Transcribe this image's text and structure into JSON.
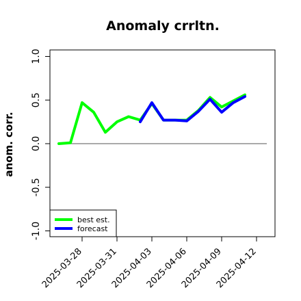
{
  "chart_data": {
    "type": "line",
    "title": "Anomaly crrltn.",
    "xlabel": "",
    "ylabel": "anom. corr.",
    "ylim": [
      -1.0,
      1.0
    ],
    "yticks": [
      "-1.0",
      "-0.5",
      "0.0",
      "0.5",
      "1.0"
    ],
    "x": [
      "2025-03-26",
      "2025-03-27",
      "2025-03-28",
      "2025-03-29",
      "2025-03-30",
      "2025-03-31",
      "2025-04-01",
      "2025-04-02",
      "2025-04-03",
      "2025-04-04",
      "2025-04-05",
      "2025-04-06",
      "2025-04-07",
      "2025-04-08",
      "2025-04-09",
      "2025-04-10",
      "2025-04-11",
      "2025-04-12"
    ],
    "xtick_labels": [
      "2025-03-28",
      "2025-03-31",
      "2025-04-03",
      "2025-04-06",
      "2025-04-09",
      "2025-04-12"
    ],
    "xtick_highlight": "2025-04-03",
    "xtick_highlight_color": "#228b22",
    "reference_line": 0.0,
    "series": [
      {
        "name": "best est.",
        "color": "#00ff00",
        "values": [
          0.0,
          0.01,
          0.47,
          0.36,
          0.13,
          0.25,
          0.31,
          0.27,
          0.46,
          0.27,
          0.27,
          0.27,
          0.38,
          0.53,
          0.42,
          0.49,
          0.56,
          null
        ]
      },
      {
        "name": "forecast",
        "color": "#0000ff",
        "values": [
          null,
          null,
          null,
          null,
          null,
          null,
          null,
          0.25,
          0.47,
          0.27,
          0.27,
          0.26,
          0.37,
          0.51,
          0.36,
          0.47,
          0.54,
          null
        ]
      }
    ],
    "legend_position": "bottom-left"
  }
}
